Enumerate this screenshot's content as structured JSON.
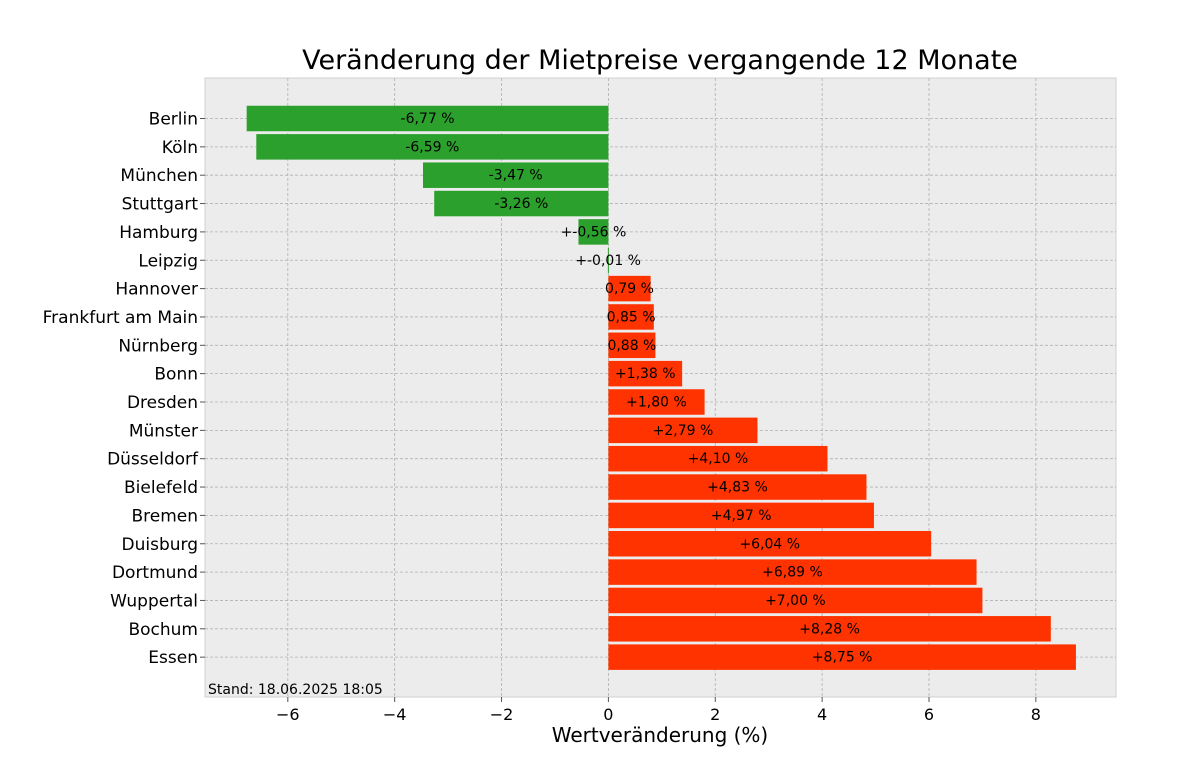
{
  "chart_data": {
    "type": "bar",
    "orientation": "horizontal",
    "title": "Veränderung der Mietpreise vergangende 12 Monate",
    "xlabel": "Wertveränderung (%)",
    "ylabel": "",
    "xlim": [
      -7.55,
      9.5
    ],
    "xticks": [
      -6,
      -4,
      -2,
      0,
      2,
      4,
      6,
      8
    ],
    "xtick_labels": [
      "−6",
      "−4",
      "−2",
      "0",
      "2",
      "4",
      "6",
      "8"
    ],
    "grid": true,
    "categories": [
      "Berlin",
      "Köln",
      "München",
      "Stuttgart",
      "Hamburg",
      "Leipzig",
      "Hannover",
      "Frankfurt am Main",
      "Nürnberg",
      "Bonn",
      "Dresden",
      "Münster",
      "Düsseldorf",
      "Bielefeld",
      "Bremen",
      "Duisburg",
      "Dortmund",
      "Wuppertal",
      "Bochum",
      "Essen"
    ],
    "values": [
      -6.77,
      -6.59,
      -3.47,
      -3.26,
      -0.56,
      -0.01,
      0.79,
      0.85,
      0.88,
      1.38,
      1.8,
      2.79,
      4.1,
      4.83,
      4.97,
      6.04,
      6.89,
      7.0,
      8.28,
      8.75
    ],
    "labels": [
      "-6,77 %",
      "-6,59 %",
      "-3,47 %",
      "-3,26 %",
      "+-0,56 %",
      "+-0,01 %",
      "0,79 %",
      "0,85 %",
      "0,88 %",
      "+1,38 %",
      "+1,80 %",
      "+2,79 %",
      "+4,10 %",
      "+4,83 %",
      "+4,97 %",
      "+6,04 %",
      "+6,89 %",
      "+7,00 %",
      "+8,28 %",
      "+8,75 %"
    ],
    "colors": {
      "negative": "#2ca02c",
      "positive": "#ff3300"
    },
    "footnote": "Stand: 18.06.2025 18:05"
  }
}
